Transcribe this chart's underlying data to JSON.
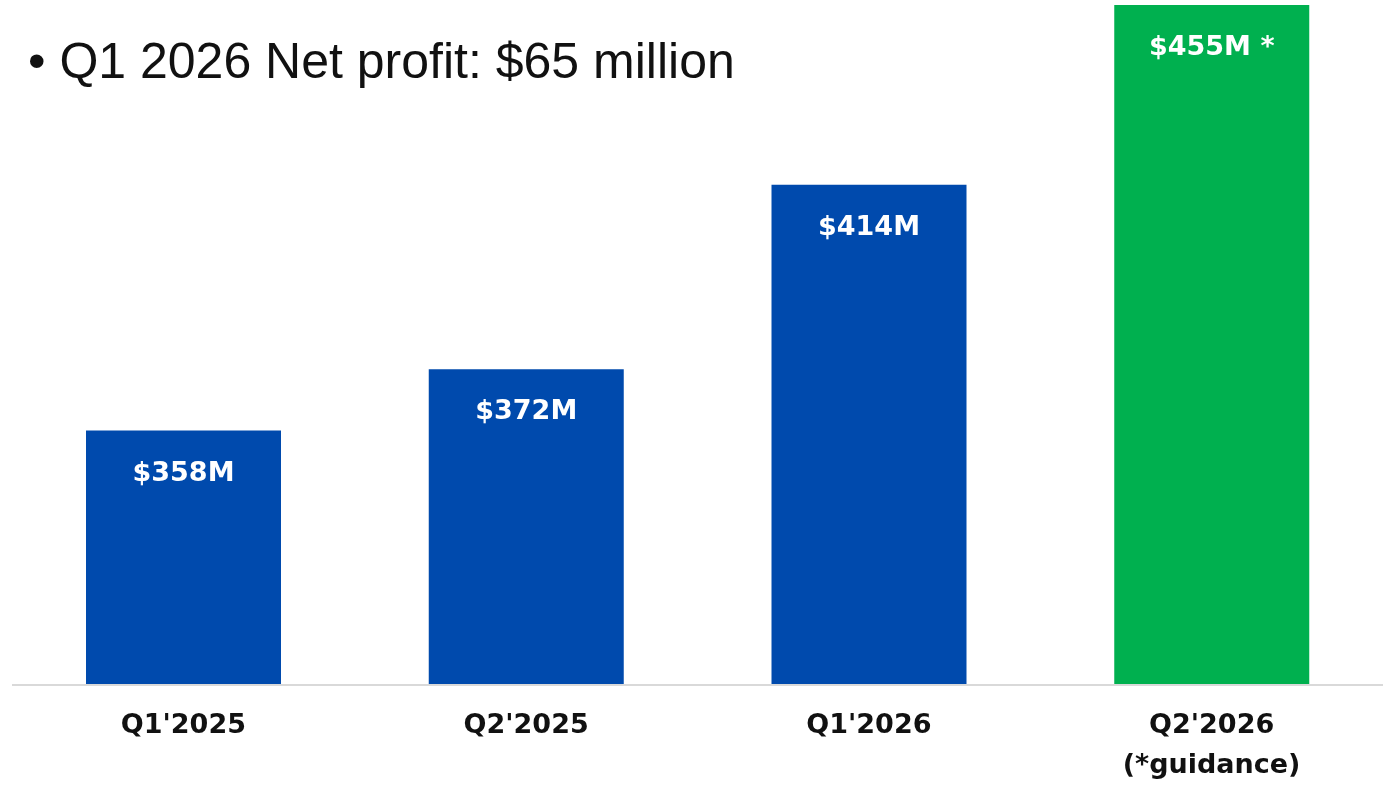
{
  "chart_data": {
    "type": "bar",
    "title": "• Q1 2026 Net profit: $65 million",
    "categories": [
      "Q1'2025",
      "Q2'2025",
      "Q1'2026",
      "Q2'2026\n(*guidance)"
    ],
    "values": [
      358,
      372,
      414,
      455
    ],
    "colors": [
      "#004aad",
      "#004aad",
      "#004aad",
      "#00b04f"
    ],
    "value_labels": [
      "$358M",
      "$372M",
      "$414M",
      "$455M *"
    ],
    "ylim": [
      300,
      455
    ],
    "tick_labels": "x"
  }
}
